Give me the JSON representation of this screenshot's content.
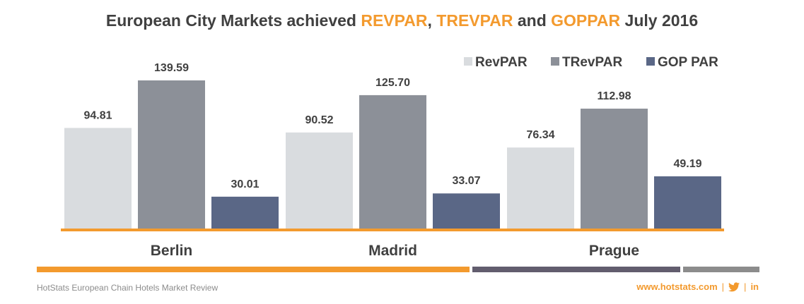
{
  "title": {
    "part1": "European City Markets achieved ",
    "hl1": "REVPAR",
    "part2": ", ",
    "hl2": "TREVPAR",
    "part3": " and ",
    "hl3": "GOPPAR",
    "part4": " July 2016"
  },
  "colors": {
    "accent": "#f39a2e",
    "revpar": "#d9dcdf",
    "trevpar": "#8c9098",
    "goppar": "#5a6786",
    "stripe_dark": "#625d6e",
    "stripe_gray": "#8c8c8c"
  },
  "chart_data": {
    "type": "bar",
    "categories": [
      "Berlin",
      "Madrid",
      "Prague"
    ],
    "series": [
      {
        "name": "RevPAR",
        "values": [
          94.81,
          90.52,
          76.34
        ],
        "labels": [
          "94.81",
          "90.52",
          "76.34"
        ]
      },
      {
        "name": "TRevPAR",
        "values": [
          139.59,
          125.7,
          112.98
        ],
        "labels": [
          "139.59",
          "125.70",
          "112.98"
        ]
      },
      {
        "name": "GOP PAR",
        "values": [
          30.01,
          33.07,
          49.19
        ],
        "labels": [
          "30.01",
          "33.07",
          "49.19"
        ]
      }
    ],
    "ylim": [
      0,
      139.59
    ],
    "grid": false,
    "legend": "top-right"
  },
  "footer": {
    "left_text": "HotStats European Chain Hotels Market Review",
    "website": "www.hotstats.com",
    "sep1": "|",
    "sep2": "|",
    "twitter_icon": "twitter-bird-icon",
    "linkedin_icon": "linkedin-icon",
    "linkedin_text": "in"
  }
}
